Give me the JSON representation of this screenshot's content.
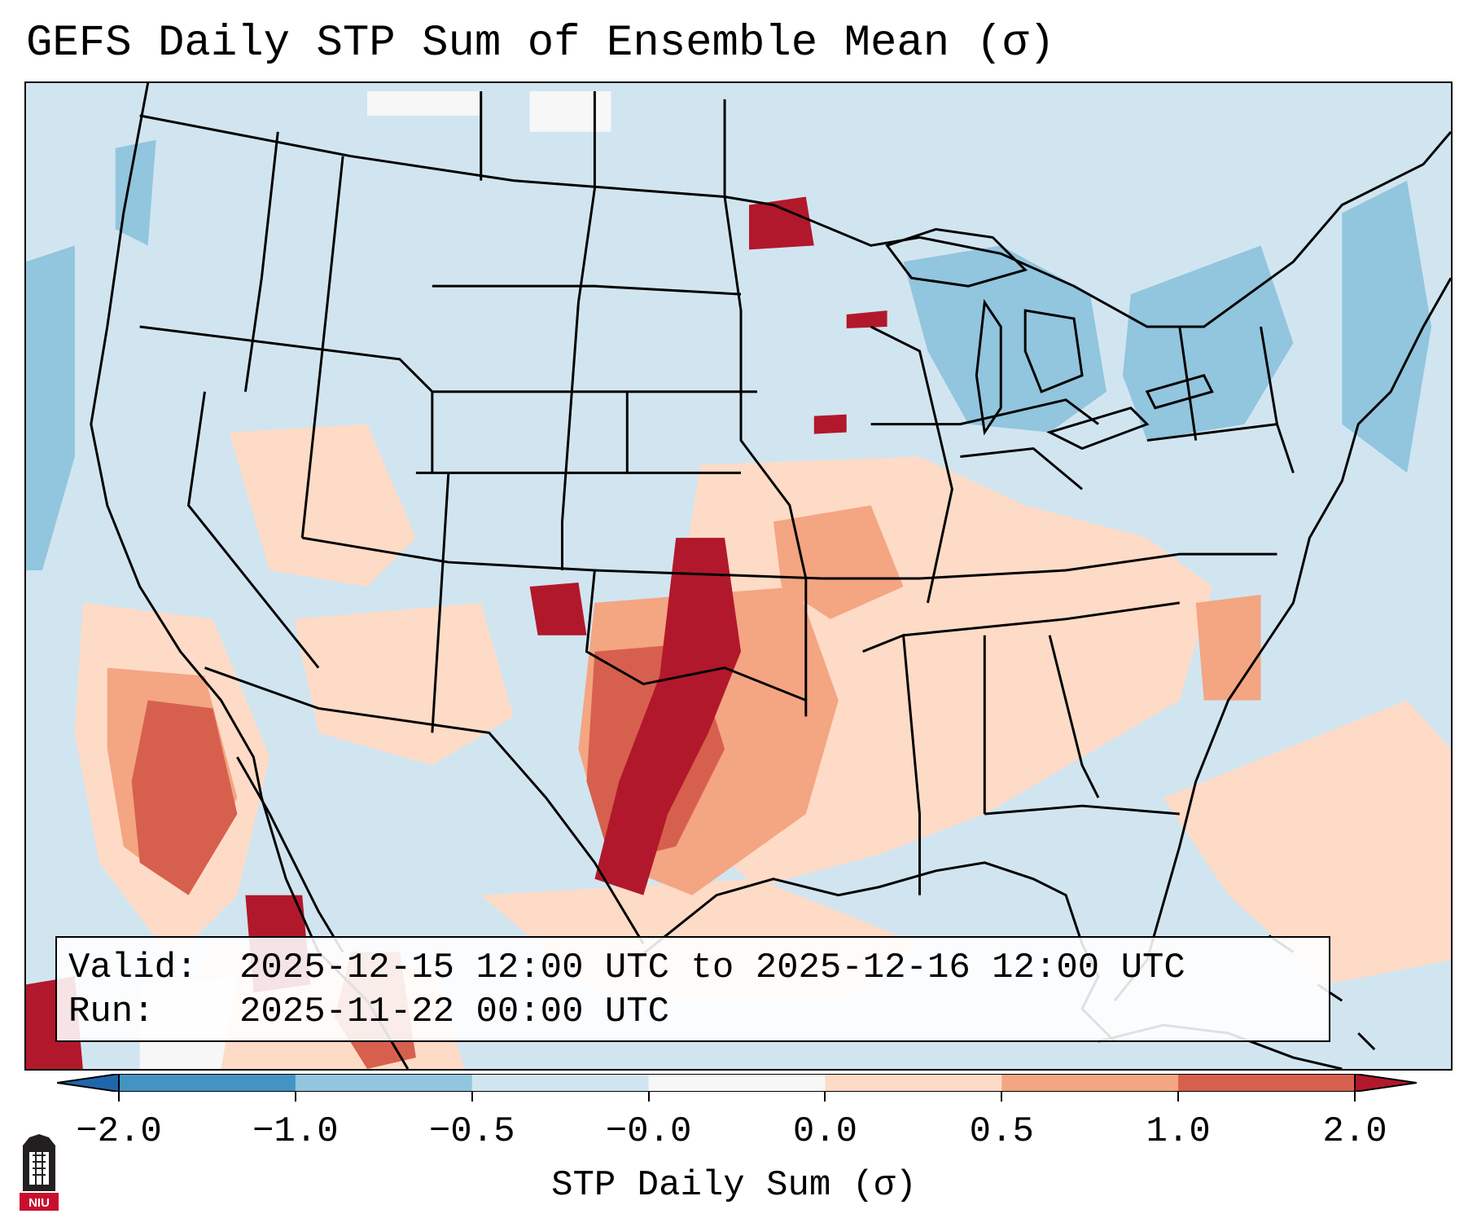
{
  "title": "GEFS Daily STP Sum of Ensemble Mean (σ)",
  "info": {
    "valid_label": "Valid:",
    "valid_value": "2025-12-15 12:00 UTC to 2025-12-16 12:00 UTC",
    "run_label": "Run:",
    "run_value": "2025-11-22 00:00 UTC"
  },
  "colorbar": {
    "label": "STP Daily Sum (σ)",
    "tick_labels": [
      "−2.0",
      "−1.0",
      "−0.5",
      "−0.0",
      "0.0",
      "0.5",
      "1.0",
      "2.0"
    ],
    "bin_colors": [
      "#4393c3",
      "#92c5de",
      "#d1e5f0",
      "#f7f7f7",
      "#fddbc7",
      "#f4a582",
      "#d6604d"
    ],
    "under_color": "#2166ac",
    "over_color": "#b2182b"
  },
  "map_fields": [
    {
      "name": "southern-plains-positive-anomaly",
      "category": "over",
      "color": "#b2182b"
    },
    {
      "name": "plains-moderate-anomaly",
      "category": "1.0 to 2.0",
      "color": "#d6604d"
    },
    {
      "name": "gulf-coast-weak-anomaly",
      "category": "0.5 to 1.0",
      "color": "#f4a582"
    },
    {
      "name": "southeast-light-anomaly",
      "category": "0.0 to 0.5",
      "color": "#fddbc7"
    },
    {
      "name": "great-lakes-negative-anomaly",
      "category": "-1.0 to -0.5",
      "color": "#92c5de"
    }
  ],
  "logo": {
    "text": "NIU"
  }
}
